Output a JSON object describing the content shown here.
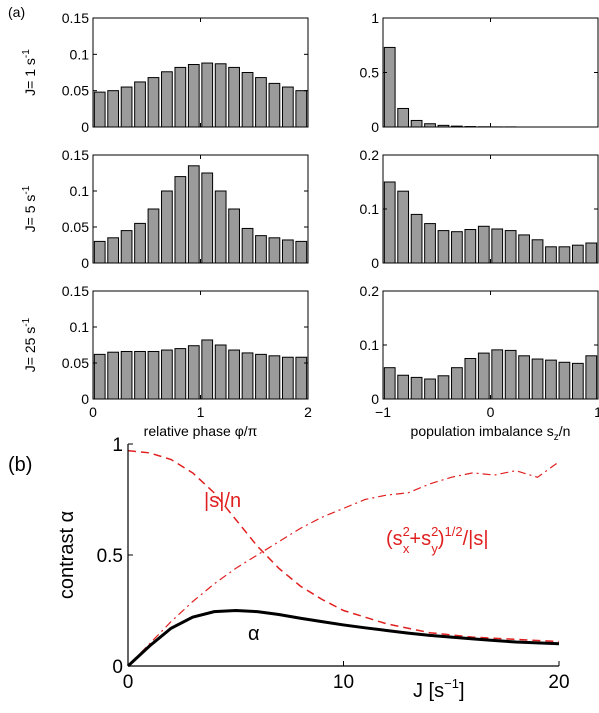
{
  "chart_data": [
    {
      "panel_label": "(a)",
      "type": "bar",
      "row_label": "J= 1 s",
      "row_label_sup": "-1",
      "xlabel": "",
      "ylabel": "",
      "xlim": [
        0,
        2
      ],
      "ylim": [
        0,
        0.15
      ],
      "yticks": [
        "0",
        "0.05",
        "0.1",
        "0.15"
      ],
      "xticks": [],
      "x": [
        0.0625,
        0.1875,
        0.3125,
        0.4375,
        0.5625,
        0.6875,
        0.8125,
        0.9375,
        1.0625,
        1.1875,
        1.3125,
        1.4375,
        1.5625,
        1.6875,
        1.8125,
        1.9375
      ],
      "values": [
        0.048,
        0.05,
        0.055,
        0.062,
        0.068,
        0.076,
        0.082,
        0.086,
        0.088,
        0.087,
        0.082,
        0.075,
        0.068,
        0.06,
        0.055,
        0.05
      ]
    },
    {
      "type": "bar",
      "xlabel": "",
      "ylabel": "",
      "xlim": [
        -1,
        1
      ],
      "ylim": [
        0,
        1
      ],
      "yticks": [
        "0",
        "0.5",
        "1"
      ],
      "xticks": [],
      "x": [
        -0.9375,
        -0.8125,
        -0.6875,
        -0.5625,
        -0.4375,
        -0.3125,
        -0.1875,
        -0.0625,
        0.0625,
        0.1875,
        0.3125,
        0.4375,
        0.5625,
        0.6875,
        0.8125,
        0.9375
      ],
      "values": [
        0.73,
        0.17,
        0.06,
        0.03,
        0.015,
        0.008,
        0.004,
        0.002,
        0.001,
        0.001,
        0,
        0,
        0,
        0,
        0,
        0
      ]
    },
    {
      "type": "bar",
      "row_label": "J= 5 s",
      "row_label_sup": "-1",
      "xlabel": "",
      "ylabel": "",
      "xlim": [
        0,
        2
      ],
      "ylim": [
        0,
        0.15
      ],
      "yticks": [
        "0",
        "0.05",
        "0.1",
        "0.15"
      ],
      "xticks": [],
      "x": [
        0.0625,
        0.1875,
        0.3125,
        0.4375,
        0.5625,
        0.6875,
        0.8125,
        0.9375,
        1.0625,
        1.1875,
        1.3125,
        1.4375,
        1.5625,
        1.6875,
        1.8125,
        1.9375
      ],
      "values": [
        0.03,
        0.035,
        0.045,
        0.055,
        0.075,
        0.1,
        0.12,
        0.135,
        0.125,
        0.1,
        0.075,
        0.048,
        0.038,
        0.035,
        0.032,
        0.03
      ]
    },
    {
      "type": "bar",
      "xlabel": "",
      "ylabel": "",
      "xlim": [
        -1,
        1
      ],
      "ylim": [
        0,
        0.2
      ],
      "yticks": [
        "0",
        "0.1",
        "0.2"
      ],
      "xticks": [],
      "x": [
        -0.9375,
        -0.8125,
        -0.6875,
        -0.5625,
        -0.4375,
        -0.3125,
        -0.1875,
        -0.0625,
        0.0625,
        0.1875,
        0.3125,
        0.4375,
        0.5625,
        0.6875,
        0.8125,
        0.9375
      ],
      "values": [
        0.15,
        0.133,
        0.09,
        0.073,
        0.06,
        0.058,
        0.062,
        0.068,
        0.063,
        0.06,
        0.052,
        0.043,
        0.03,
        0.03,
        0.033,
        0.037
      ]
    },
    {
      "type": "bar",
      "row_label": "J= 25 s",
      "row_label_sup": "-1",
      "xlabel": "relative phase φ/π",
      "ylabel": "",
      "xlim": [
        0,
        2
      ],
      "ylim": [
        0,
        0.15
      ],
      "yticks": [
        "0",
        "0.05",
        "0.1",
        "0.15"
      ],
      "xticks": [
        "0",
        "1",
        "2"
      ],
      "x": [
        0.0625,
        0.1875,
        0.3125,
        0.4375,
        0.5625,
        0.6875,
        0.8125,
        0.9375,
        1.0625,
        1.1875,
        1.3125,
        1.4375,
        1.5625,
        1.6875,
        1.8125,
        1.9375
      ],
      "values": [
        0.062,
        0.065,
        0.066,
        0.066,
        0.066,
        0.068,
        0.07,
        0.074,
        0.082,
        0.075,
        0.068,
        0.064,
        0.062,
        0.06,
        0.058,
        0.058
      ]
    },
    {
      "type": "bar",
      "xlabel": "population imbalance s",
      "xlabel_sub": "z",
      "xlabel_tail": "/n",
      "ylabel": "",
      "xlim": [
        -1,
        1
      ],
      "ylim": [
        0,
        0.2
      ],
      "yticks": [
        "0",
        "0.1",
        "0.2"
      ],
      "xticks": [
        "−1",
        "0",
        "1"
      ],
      "x": [
        -0.9375,
        -0.8125,
        -0.6875,
        -0.5625,
        -0.4375,
        -0.3125,
        -0.1875,
        -0.0625,
        0.0625,
        0.1875,
        0.3125,
        0.4375,
        0.5625,
        0.6875,
        0.8125,
        0.9375
      ],
      "values": [
        0.058,
        0.044,
        0.04,
        0.037,
        0.043,
        0.058,
        0.075,
        0.085,
        0.091,
        0.09,
        0.08,
        0.074,
        0.072,
        0.068,
        0.066,
        0.08
      ]
    },
    {
      "panel_label": "(b)",
      "type": "line",
      "xlabel": "J [s",
      "xlabel_sup": "−1",
      "xlabel_tail": "]",
      "ylabel": "contrast α",
      "xlim": [
        0,
        20
      ],
      "ylim": [
        0,
        1
      ],
      "xticks": [
        "0",
        "10",
        "20"
      ],
      "yticks": [
        "0",
        "0.5",
        "1"
      ],
      "series": [
        {
          "name": "|s|/n",
          "color": "#e02020",
          "style": "dashed",
          "x": [
            0,
            1,
            2,
            3,
            4,
            5,
            6,
            7,
            8,
            9,
            10,
            11,
            12,
            13,
            14,
            15,
            16,
            17,
            18,
            19,
            20
          ],
          "y": [
            0.97,
            0.96,
            0.93,
            0.87,
            0.78,
            0.66,
            0.54,
            0.44,
            0.36,
            0.3,
            0.25,
            0.22,
            0.19,
            0.17,
            0.15,
            0.14,
            0.13,
            0.125,
            0.12,
            0.115,
            0.11
          ]
        },
        {
          "name": "(s",
          "name_sub_1": "x",
          "name_sup_1": "2",
          "name_mid": "+s",
          "name_sub_2": "y",
          "name_sup_2": "2",
          "name_tail_1": ")",
          "name_sup_3": "1/2",
          "name_tail_2": "/|s|",
          "color": "#e02020",
          "style": "dashdot",
          "x": [
            0,
            1,
            2,
            3,
            4,
            5,
            6,
            7,
            8,
            9,
            10,
            11,
            12,
            13,
            14,
            15,
            16,
            17,
            18,
            19,
            20
          ],
          "y": [
            0.0,
            0.1,
            0.2,
            0.29,
            0.37,
            0.44,
            0.5,
            0.56,
            0.62,
            0.67,
            0.71,
            0.75,
            0.77,
            0.78,
            0.82,
            0.85,
            0.87,
            0.86,
            0.88,
            0.85,
            0.92
          ]
        },
        {
          "name": "α",
          "color": "#000000",
          "style": "solid",
          "x": [
            0,
            1,
            2,
            3,
            4,
            5,
            6,
            7,
            8,
            9,
            10,
            11,
            12,
            13,
            14,
            15,
            16,
            17,
            18,
            19,
            20
          ],
          "y": [
            0.0,
            0.09,
            0.17,
            0.22,
            0.245,
            0.25,
            0.245,
            0.232,
            0.215,
            0.2,
            0.185,
            0.172,
            0.16,
            0.148,
            0.138,
            0.13,
            0.122,
            0.115,
            0.108,
            0.104,
            0.1
          ]
        }
      ]
    }
  ],
  "colors": {
    "bar_fill": "#9b9b9b",
    "bar_edge": "#000000",
    "accent_red": "#e02020"
  }
}
